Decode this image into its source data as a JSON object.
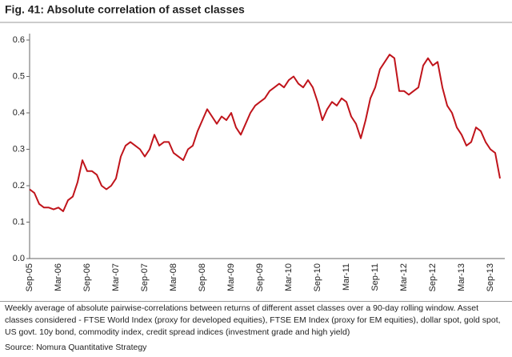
{
  "chart_data": {
    "type": "line",
    "title": "Fig. 41: Absolute correlation of asset classes",
    "categories": [
      "Sep-05",
      null,
      null,
      null,
      null,
      null,
      "Mar-06",
      null,
      null,
      null,
      null,
      null,
      "Sep-06",
      null,
      null,
      null,
      null,
      null,
      "Mar-07",
      null,
      null,
      null,
      null,
      null,
      "Sep-07",
      null,
      null,
      null,
      null,
      null,
      "Mar-08",
      null,
      null,
      null,
      null,
      null,
      "Sep-08",
      null,
      null,
      null,
      null,
      null,
      "Mar-09",
      null,
      null,
      null,
      null,
      null,
      "Sep-09",
      null,
      null,
      null,
      null,
      null,
      "Mar-10",
      null,
      null,
      null,
      null,
      null,
      "Sep-10",
      null,
      null,
      null,
      null,
      null,
      "Mar-11",
      null,
      null,
      null,
      null,
      null,
      "Sep-11",
      null,
      null,
      null,
      null,
      null,
      "Mar-12",
      null,
      null,
      null,
      null,
      null,
      "Sep-12",
      null,
      null,
      null,
      null,
      null,
      "Mar-13",
      null,
      null,
      null,
      null,
      null,
      "Sep-13",
      null,
      null
    ],
    "series": [
      {
        "color": "#c0141b",
        "values": [
          0.19,
          0.18,
          0.15,
          0.14,
          0.14,
          0.135,
          0.14,
          0.13,
          0.16,
          0.17,
          0.21,
          0.27,
          0.24,
          0.24,
          0.23,
          0.2,
          0.19,
          0.2,
          0.22,
          0.28,
          0.31,
          0.32,
          0.31,
          0.3,
          0.28,
          0.3,
          0.34,
          0.31,
          0.32,
          0.32,
          0.29,
          0.28,
          0.27,
          0.3,
          0.31,
          0.35,
          0.38,
          0.41,
          0.39,
          0.37,
          0.39,
          0.38,
          0.4,
          0.36,
          0.34,
          0.37,
          0.4,
          0.42,
          0.43,
          0.44,
          0.46,
          0.47,
          0.48,
          0.47,
          0.49,
          0.5,
          0.48,
          0.47,
          0.49,
          0.47,
          0.43,
          0.38,
          0.41,
          0.43,
          0.42,
          0.44,
          0.43,
          0.39,
          0.37,
          0.33,
          0.38,
          0.44,
          0.47,
          0.52,
          0.54,
          0.56,
          0.55,
          0.46,
          0.46,
          0.45,
          0.46,
          0.47,
          0.53,
          0.55,
          0.53,
          0.54,
          0.47,
          0.42,
          0.4,
          0.36,
          0.34,
          0.31,
          0.32,
          0.36,
          0.35,
          0.32,
          0.3,
          0.29,
          0.22
        ]
      }
    ],
    "ylim": [
      0,
      0.6
    ],
    "yticks": [
      {
        "value": 0,
        "label": "0.0"
      },
      0.1,
      0.2,
      0.3,
      0.4,
      0.5,
      0.6
    ],
    "grid": false,
    "note": "Weekly average of absolute pairwise-correlations between returns of different asset classes over a 90-day rolling window. Asset classes considered - FTSE World Index (proxy for developed equities), FTSE EM Index (proxy for EM equities), dollar spot, gold spot, US govt. 10y bond, commodity index, credit spread indices (investment grade and high yield)",
    "source": "Source: Nomura Quantitative Strategy"
  }
}
